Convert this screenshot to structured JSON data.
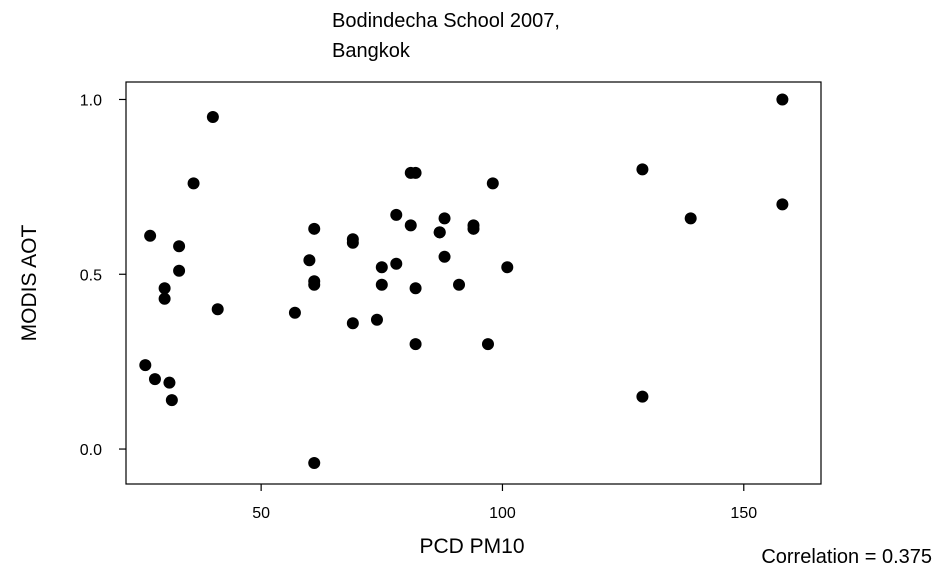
{
  "chart_data": {
    "type": "scatter",
    "title_lines": [
      "Bodindecha School 2007,",
      "Bangkok"
    ],
    "xlabel": "PCD PM10",
    "ylabel": "MODIS AOT",
    "xlim": [
      22,
      166
    ],
    "ylim": [
      -0.1,
      1.05
    ],
    "x_ticks": [
      50,
      100,
      150
    ],
    "y_ticks": [
      0.0,
      0.5,
      1.0
    ],
    "x_tick_labels": [
      "50",
      "100",
      "150"
    ],
    "y_tick_labels": [
      "0.0",
      "0.5",
      "1.0"
    ],
    "grid": false,
    "annotation": "Correlation = 0.375",
    "point_color": "#000000",
    "points": [
      {
        "x": 26,
        "y": 0.24
      },
      {
        "x": 27,
        "y": 0.61
      },
      {
        "x": 28,
        "y": 0.2
      },
      {
        "x": 30,
        "y": 0.46
      },
      {
        "x": 30,
        "y": 0.43
      },
      {
        "x": 31,
        "y": 0.19
      },
      {
        "x": 31.5,
        "y": 0.14
      },
      {
        "x": 33,
        "y": 0.58
      },
      {
        "x": 33,
        "y": 0.51
      },
      {
        "x": 36,
        "y": 0.76
      },
      {
        "x": 40,
        "y": 0.95
      },
      {
        "x": 41,
        "y": 0.4
      },
      {
        "x": 57,
        "y": 0.39
      },
      {
        "x": 60,
        "y": 0.54
      },
      {
        "x": 61,
        "y": 0.63
      },
      {
        "x": 61,
        "y": 0.48
      },
      {
        "x": 61,
        "y": 0.47
      },
      {
        "x": 61,
        "y": -0.04
      },
      {
        "x": 69,
        "y": 0.6
      },
      {
        "x": 69,
        "y": 0.59
      },
      {
        "x": 69,
        "y": 0.36
      },
      {
        "x": 74,
        "y": 0.37
      },
      {
        "x": 75,
        "y": 0.52
      },
      {
        "x": 75,
        "y": 0.47
      },
      {
        "x": 78,
        "y": 0.67
      },
      {
        "x": 78,
        "y": 0.53
      },
      {
        "x": 81,
        "y": 0.79
      },
      {
        "x": 82,
        "y": 0.79
      },
      {
        "x": 81,
        "y": 0.64
      },
      {
        "x": 82,
        "y": 0.46
      },
      {
        "x": 82,
        "y": 0.3
      },
      {
        "x": 87,
        "y": 0.62
      },
      {
        "x": 87,
        "y": 0.62
      },
      {
        "x": 88,
        "y": 0.66
      },
      {
        "x": 88,
        "y": 0.55
      },
      {
        "x": 91,
        "y": 0.47
      },
      {
        "x": 94,
        "y": 0.64
      },
      {
        "x": 94,
        "y": 0.63
      },
      {
        "x": 97,
        "y": 0.3
      },
      {
        "x": 98,
        "y": 0.76
      },
      {
        "x": 101,
        "y": 0.52
      },
      {
        "x": 129,
        "y": 0.8
      },
      {
        "x": 129,
        "y": 0.15
      },
      {
        "x": 139,
        "y": 0.66
      },
      {
        "x": 158,
        "y": 1.0
      },
      {
        "x": 158,
        "y": 0.7
      }
    ]
  }
}
